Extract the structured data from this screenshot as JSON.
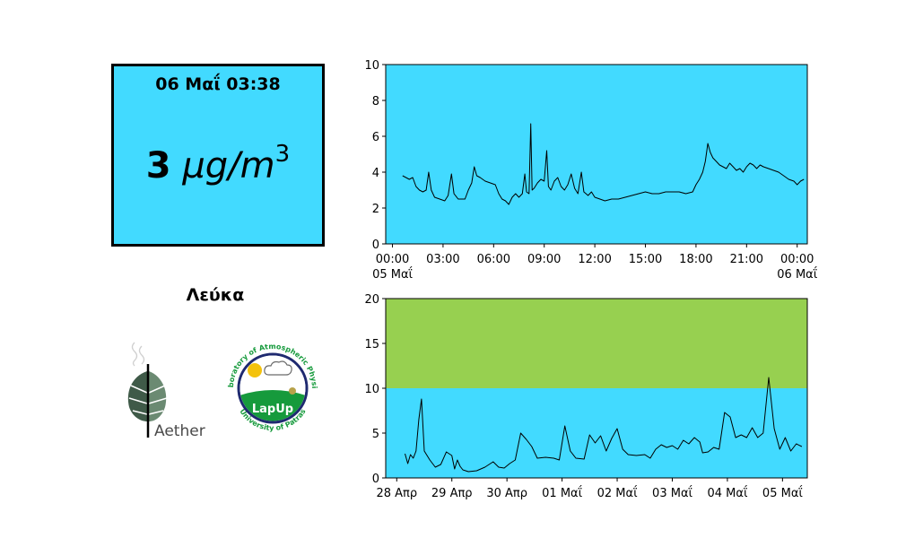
{
  "theme": {
    "panel_color": "#42daff",
    "threshold_color": "#97d050",
    "line_color": "#000000",
    "aether_leaf_color": "#3f5a48",
    "lapup_green": "#169a3c",
    "lapup_navy": "#1f2a70"
  },
  "current_reading": {
    "timestamp": "06 Μαΐ 03:38",
    "value": "3",
    "unit_base": "μg/m",
    "unit_exponent": "3"
  },
  "location": {
    "name": "Λεύκα"
  },
  "logos": {
    "aether": {
      "text": "Aether",
      "icon": "aether-leaf-logo"
    },
    "lapup": {
      "center_text": "LapUp",
      "ring_top": "Laboratory of Atmospheric Physics",
      "ring_bottom": "University of Patras",
      "icon": "lapup-seal-logo"
    }
  },
  "chart_data": [
    {
      "type": "line",
      "title": "",
      "xlabel": "",
      "ylabel": "",
      "grid": false,
      "ylim": [
        0,
        10
      ],
      "yticks": [
        0,
        2,
        4,
        6,
        8,
        10
      ],
      "xlim": [
        -0.4,
        24.6
      ],
      "xticks": [
        {
          "x": 0,
          "label": "00:00",
          "sublabel": "05 Μαΐ"
        },
        {
          "x": 3,
          "label": "03:00",
          "sublabel": ""
        },
        {
          "x": 6,
          "label": "06:00",
          "sublabel": ""
        },
        {
          "x": 9,
          "label": "09:00",
          "sublabel": ""
        },
        {
          "x": 12,
          "label": "12:00",
          "sublabel": ""
        },
        {
          "x": 15,
          "label": "15:00",
          "sublabel": ""
        },
        {
          "x": 18,
          "label": "18:00",
          "sublabel": ""
        },
        {
          "x": 21,
          "label": "21:00",
          "sublabel": ""
        },
        {
          "x": 24,
          "label": "00:00",
          "sublabel": "06 Μαΐ"
        }
      ],
      "series": [
        {
          "values": [
            [
              0.6,
              3.8
            ],
            [
              0.8,
              3.7
            ],
            [
              1.0,
              3.6
            ],
            [
              1.2,
              3.7
            ],
            [
              1.4,
              3.2
            ],
            [
              1.6,
              3.0
            ],
            [
              1.8,
              2.9
            ],
            [
              2.0,
              3.0
            ],
            [
              2.15,
              4.0
            ],
            [
              2.3,
              3.0
            ],
            [
              2.5,
              2.6
            ],
            [
              2.8,
              2.5
            ],
            [
              3.1,
              2.4
            ],
            [
              3.3,
              2.7
            ],
            [
              3.5,
              3.9
            ],
            [
              3.65,
              2.8
            ],
            [
              3.9,
              2.5
            ],
            [
              4.3,
              2.5
            ],
            [
              4.5,
              3.0
            ],
            [
              4.7,
              3.4
            ],
            [
              4.85,
              4.3
            ],
            [
              5.0,
              3.8
            ],
            [
              5.2,
              3.7
            ],
            [
              5.5,
              3.5
            ],
            [
              5.8,
              3.4
            ],
            [
              6.1,
              3.3
            ],
            [
              6.3,
              2.8
            ],
            [
              6.5,
              2.5
            ],
            [
              6.7,
              2.4
            ],
            [
              6.9,
              2.2
            ],
            [
              7.1,
              2.6
            ],
            [
              7.3,
              2.8
            ],
            [
              7.5,
              2.6
            ],
            [
              7.7,
              2.8
            ],
            [
              7.85,
              3.9
            ],
            [
              7.95,
              2.9
            ],
            [
              8.1,
              2.8
            ],
            [
              8.2,
              6.7
            ],
            [
              8.28,
              3.0
            ],
            [
              8.4,
              3.1
            ],
            [
              8.6,
              3.4
            ],
            [
              8.8,
              3.6
            ],
            [
              9.0,
              3.5
            ],
            [
              9.15,
              5.2
            ],
            [
              9.25,
              3.2
            ],
            [
              9.4,
              3.0
            ],
            [
              9.6,
              3.5
            ],
            [
              9.8,
              3.7
            ],
            [
              10.0,
              3.2
            ],
            [
              10.2,
              3.0
            ],
            [
              10.4,
              3.3
            ],
            [
              10.6,
              3.9
            ],
            [
              10.8,
              3.1
            ],
            [
              11.0,
              2.8
            ],
            [
              11.2,
              4.0
            ],
            [
              11.35,
              2.9
            ],
            [
              11.6,
              2.7
            ],
            [
              11.8,
              2.9
            ],
            [
              12.0,
              2.6
            ],
            [
              12.3,
              2.5
            ],
            [
              12.6,
              2.4
            ],
            [
              13.0,
              2.5
            ],
            [
              13.4,
              2.5
            ],
            [
              13.8,
              2.6
            ],
            [
              14.2,
              2.7
            ],
            [
              14.6,
              2.8
            ],
            [
              15.0,
              2.9
            ],
            [
              15.4,
              2.8
            ],
            [
              15.8,
              2.8
            ],
            [
              16.2,
              2.9
            ],
            [
              16.6,
              2.9
            ],
            [
              17.0,
              2.9
            ],
            [
              17.4,
              2.8
            ],
            [
              17.8,
              2.9
            ],
            [
              18.0,
              3.3
            ],
            [
              18.2,
              3.6
            ],
            [
              18.4,
              4.0
            ],
            [
              18.55,
              4.6
            ],
            [
              18.7,
              5.6
            ],
            [
              18.85,
              5.1
            ],
            [
              19.0,
              4.8
            ],
            [
              19.2,
              4.6
            ],
            [
              19.4,
              4.4
            ],
            [
              19.6,
              4.3
            ],
            [
              19.8,
              4.2
            ],
            [
              20.0,
              4.5
            ],
            [
              20.2,
              4.3
            ],
            [
              20.4,
              4.1
            ],
            [
              20.6,
              4.2
            ],
            [
              20.8,
              4.0
            ],
            [
              21.0,
              4.3
            ],
            [
              21.2,
              4.5
            ],
            [
              21.4,
              4.4
            ],
            [
              21.6,
              4.2
            ],
            [
              21.8,
              4.4
            ],
            [
              22.0,
              4.3
            ],
            [
              22.3,
              4.2
            ],
            [
              22.6,
              4.1
            ],
            [
              22.9,
              4.0
            ],
            [
              23.2,
              3.8
            ],
            [
              23.5,
              3.6
            ],
            [
              23.8,
              3.5
            ],
            [
              24.0,
              3.3
            ],
            [
              24.2,
              3.5
            ],
            [
              24.4,
              3.6
            ]
          ]
        }
      ]
    },
    {
      "type": "line",
      "title": "",
      "xlabel": "",
      "ylabel": "",
      "grid": false,
      "ylim": [
        0,
        20
      ],
      "yticks": [
        0,
        5,
        10,
        15,
        20
      ],
      "threshold": 10,
      "xlim": [
        -0.2,
        7.45
      ],
      "xticks": [
        {
          "x": 0,
          "label": "28 Απρ"
        },
        {
          "x": 1,
          "label": "29 Απρ"
        },
        {
          "x": 2,
          "label": "30 Απρ"
        },
        {
          "x": 3,
          "label": "01 Μαΐ"
        },
        {
          "x": 4,
          "label": "02 Μαΐ"
        },
        {
          "x": 5,
          "label": "03 Μαΐ"
        },
        {
          "x": 6,
          "label": "04 Μαΐ"
        },
        {
          "x": 7,
          "label": "05 Μαΐ"
        }
      ],
      "series": [
        {
          "values": [
            [
              0.15,
              2.7
            ],
            [
              0.2,
              1.6
            ],
            [
              0.25,
              2.6
            ],
            [
              0.3,
              2.2
            ],
            [
              0.35,
              3.0
            ],
            [
              0.4,
              6.5
            ],
            [
              0.45,
              8.8
            ],
            [
              0.5,
              3.0
            ],
            [
              0.6,
              2.0
            ],
            [
              0.7,
              1.2
            ],
            [
              0.8,
              1.5
            ],
            [
              0.9,
              2.9
            ],
            [
              1.0,
              2.5
            ],
            [
              1.05,
              1.0
            ],
            [
              1.1,
              2.0
            ],
            [
              1.15,
              1.3
            ],
            [
              1.2,
              0.9
            ],
            [
              1.3,
              0.7
            ],
            [
              1.45,
              0.8
            ],
            [
              1.6,
              1.2
            ],
            [
              1.75,
              1.8
            ],
            [
              1.85,
              1.2
            ],
            [
              1.95,
              1.1
            ],
            [
              2.05,
              1.6
            ],
            [
              2.15,
              2.0
            ],
            [
              2.25,
              5.0
            ],
            [
              2.35,
              4.3
            ],
            [
              2.45,
              3.5
            ],
            [
              2.55,
              2.2
            ],
            [
              2.7,
              2.3
            ],
            [
              2.85,
              2.2
            ],
            [
              2.95,
              2.0
            ],
            [
              3.05,
              5.8
            ],
            [
              3.15,
              3.0
            ],
            [
              3.25,
              2.2
            ],
            [
              3.4,
              2.1
            ],
            [
              3.5,
              4.8
            ],
            [
              3.6,
              3.9
            ],
            [
              3.7,
              4.7
            ],
            [
              3.8,
              3.0
            ],
            [
              3.9,
              4.4
            ],
            [
              4.0,
              5.5
            ],
            [
              4.1,
              3.2
            ],
            [
              4.2,
              2.6
            ],
            [
              4.35,
              2.5
            ],
            [
              4.5,
              2.6
            ],
            [
              4.6,
              2.2
            ],
            [
              4.7,
              3.2
            ],
            [
              4.8,
              3.7
            ],
            [
              4.9,
              3.4
            ],
            [
              5.0,
              3.6
            ],
            [
              5.1,
              3.2
            ],
            [
              5.2,
              4.2
            ],
            [
              5.3,
              3.8
            ],
            [
              5.4,
              4.5
            ],
            [
              5.5,
              4.0
            ],
            [
              5.55,
              2.8
            ],
            [
              5.65,
              2.9
            ],
            [
              5.75,
              3.4
            ],
            [
              5.85,
              3.2
            ],
            [
              5.95,
              7.3
            ],
            [
              6.05,
              6.8
            ],
            [
              6.15,
              4.5
            ],
            [
              6.25,
              4.8
            ],
            [
              6.35,
              4.5
            ],
            [
              6.45,
              5.6
            ],
            [
              6.55,
              4.5
            ],
            [
              6.65,
              5.0
            ],
            [
              6.75,
              11.2
            ],
            [
              6.85,
              5.5
            ],
            [
              6.95,
              3.2
            ],
            [
              7.05,
              4.5
            ],
            [
              7.15,
              3.0
            ],
            [
              7.25,
              3.8
            ],
            [
              7.35,
              3.5
            ]
          ]
        }
      ]
    }
  ]
}
